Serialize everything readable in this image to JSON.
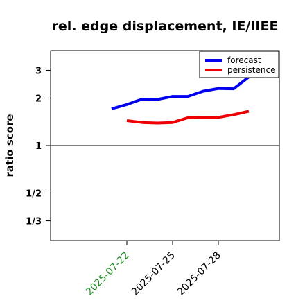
{
  "chart_data": {
    "type": "line",
    "title": "rel. edge displacement, IE/IIEE",
    "xlabel": "",
    "ylabel": "ratio score",
    "y_scale": "log",
    "ylim": [
      0.25,
      4
    ],
    "xlim": [
      "2025-07-17",
      "2025-08-01"
    ],
    "reference_line": 1,
    "y_ticks": [
      {
        "value": 3,
        "label": "3"
      },
      {
        "value": 2,
        "label": "2"
      },
      {
        "value": 1,
        "label": "1"
      },
      {
        "value": 0.5,
        "label": "1/2"
      },
      {
        "value": 0.3333,
        "label": "1/3"
      }
    ],
    "x_ticks": [
      {
        "date": "2025-07-22",
        "label": "2025-07-22",
        "color": "#228b22"
      },
      {
        "date": "2025-07-25",
        "label": "2025-07-25",
        "color": "#000000"
      },
      {
        "date": "2025-07-28",
        "label": "2025-07-28",
        "color": "#000000"
      }
    ],
    "legend_position": "top-right",
    "series": [
      {
        "name": "forecast",
        "color": "#0000ee",
        "points": [
          {
            "x": "2025-07-21",
            "y": 1.71
          },
          {
            "x": "2025-07-22",
            "y": 1.82
          },
          {
            "x": "2025-07-23",
            "y": 1.97
          },
          {
            "x": "2025-07-24",
            "y": 1.96
          },
          {
            "x": "2025-07-25",
            "y": 2.05
          },
          {
            "x": "2025-07-26",
            "y": 2.05
          },
          {
            "x": "2025-07-27",
            "y": 2.21
          },
          {
            "x": "2025-07-28",
            "y": 2.3
          },
          {
            "x": "2025-07-29",
            "y": 2.29
          },
          {
            "x": "2025-07-30",
            "y": 2.72
          }
        ]
      },
      {
        "name": "persistence",
        "color": "#ee0000",
        "points": [
          {
            "x": "2025-07-22",
            "y": 1.44
          },
          {
            "x": "2025-07-23",
            "y": 1.4
          },
          {
            "x": "2025-07-24",
            "y": 1.39
          },
          {
            "x": "2025-07-25",
            "y": 1.4
          },
          {
            "x": "2025-07-26",
            "y": 1.5
          },
          {
            "x": "2025-07-27",
            "y": 1.51
          },
          {
            "x": "2025-07-28",
            "y": 1.51
          },
          {
            "x": "2025-07-29",
            "y": 1.57
          },
          {
            "x": "2025-07-30",
            "y": 1.65
          }
        ]
      }
    ]
  }
}
